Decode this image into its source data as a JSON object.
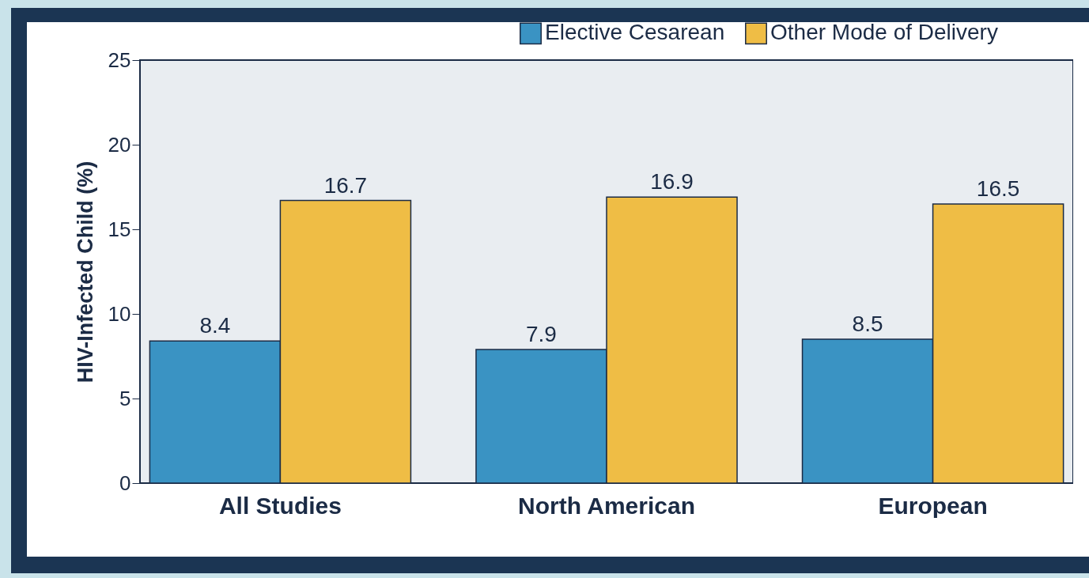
{
  "chart_data": {
    "type": "bar",
    "categories": [
      "All Studies",
      "North American",
      "European"
    ],
    "series": [
      {
        "name": "Elective Cesarean",
        "color": "#3a93c3",
        "values": [
          8.4,
          7.9,
          8.5
        ]
      },
      {
        "name": "Other Mode of Delivery",
        "color": "#efbd45",
        "values": [
          16.7,
          16.9,
          16.5
        ]
      }
    ],
    "ylabel": "HIV-Infected Child (%)",
    "ylim": [
      0,
      25
    ],
    "yticks": [
      0,
      5,
      10,
      15,
      20,
      25
    ],
    "grid": false,
    "legend": "top right",
    "data_labels": true
  }
}
